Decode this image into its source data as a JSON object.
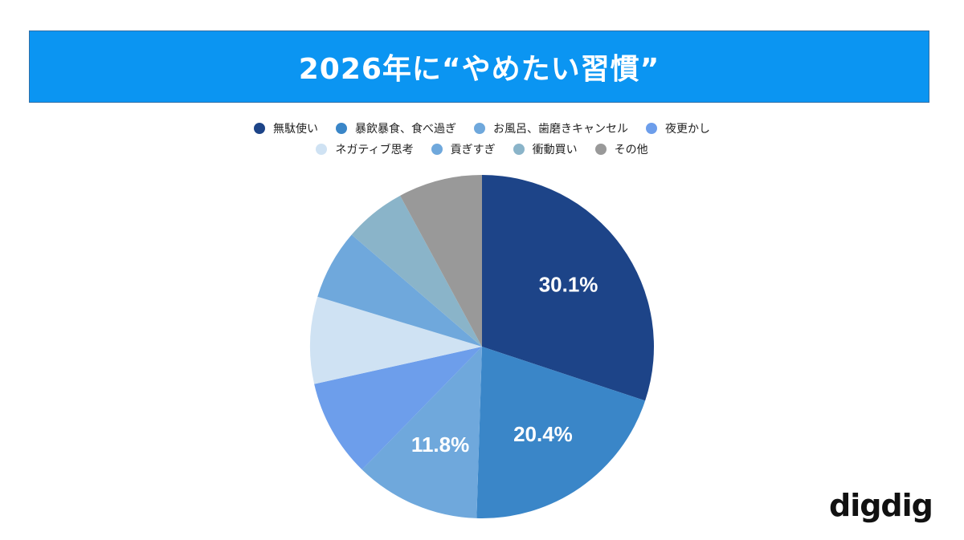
{
  "title": "2026年に“やめたい習慣”",
  "logo": "digdig",
  "legend": [
    {
      "label": "無駄使い",
      "color": "#1d4488"
    },
    {
      "label": "暴飲暴食、食べ過ぎ",
      "color": "#3a86c8"
    },
    {
      "label": "お風呂、歯磨きキャンセル",
      "color": "#6fa8dc"
    },
    {
      "label": "夜更かし",
      "color": "#6d9eeb"
    },
    {
      "label": "ネガティブ思考",
      "color": "#cfe2f3"
    },
    {
      "label": "貢ぎすぎ",
      "color": "#6fa8dc"
    },
    {
      "label": "衝動買い",
      "color": "#8ab4c9"
    },
    {
      "label": "その他",
      "color": "#999999"
    }
  ],
  "chart_data": {
    "type": "pie",
    "title": "2026年に“やめたい習慣”",
    "categories": [
      "無駄使い",
      "暴飲暴食、食べ過ぎ",
      "お風呂、歯磨きキャンセル",
      "夜更かし",
      "ネガティブ思考",
      "貢ぎすぎ",
      "衝動買い",
      "その他"
    ],
    "values": [
      30.1,
      20.4,
      11.8,
      9.2,
      8.2,
      6.6,
      5.8,
      7.9
    ],
    "colors": [
      "#1d4488",
      "#3a86c8",
      "#6fa8dc",
      "#6d9eeb",
      "#cfe2f3",
      "#6fa8dc",
      "#8ab4c9",
      "#999999"
    ],
    "data_labels": [
      "30.1%",
      "20.4%",
      "11.8%",
      "",
      "",
      "",
      "",
      ""
    ],
    "legend_position": "top",
    "start_angle": "12 o'clock, clockwise"
  }
}
